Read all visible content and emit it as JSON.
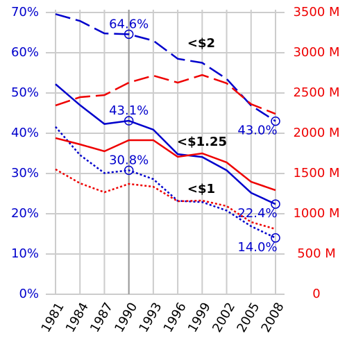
{
  "chart_data": {
    "type": "line",
    "x": [
      1981,
      1984,
      1987,
      1990,
      1993,
      1996,
      1999,
      2002,
      2005,
      2008
    ],
    "xlim": [
      1981,
      2008
    ],
    "xticks": [
      1981,
      1984,
      1987,
      1990,
      1993,
      1996,
      1999,
      2002,
      2005,
      2008
    ],
    "ylim": [
      0,
      70
    ],
    "yticks": [
      {
        "value": 0,
        "label": "0%"
      },
      {
        "value": 10,
        "label": "10%"
      },
      {
        "value": 20,
        "label": "20%"
      },
      {
        "value": 30,
        "label": "30%"
      },
      {
        "value": 40,
        "label": "40%"
      },
      {
        "value": 50,
        "label": "50%"
      },
      {
        "value": 60,
        "label": "60%"
      },
      {
        "value": 70,
        "label": "70%"
      }
    ],
    "y2lim": [
      0,
      3500
    ],
    "y2ticks": [
      0,
      {
        "value": 500,
        "label": "500 M"
      },
      {
        "value": 1000,
        "label": "1000 M"
      },
      {
        "value": 1500,
        "label": "1500 M"
      },
      {
        "value": 2000,
        "label": "2000 M"
      },
      {
        "value": 2500,
        "label": "2500 M"
      },
      {
        "value": 3000,
        "label": "3000 M"
      },
      {
        "value": 3500,
        "label": "3500 M"
      }
    ],
    "grid": true,
    "y_color": "#0000cc",
    "y2_color": "#ee0000",
    "series": [
      {
        "name": "<$2",
        "color": "#0000cc",
        "style": "dashed",
        "values": [
          69.6,
          67.9,
          64.8,
          64.6,
          63.0,
          58.5,
          57.5,
          53.5,
          46.9,
          43.0
        ],
        "value_labels": [
          null,
          null,
          null,
          "64.6%",
          null,
          null,
          null,
          null,
          null,
          "43.0%"
        ]
      },
      {
        "name": "<$1.25",
        "color": "#0000cc",
        "style": "solid",
        "values": [
          52.2,
          47.0,
          42.3,
          43.1,
          40.9,
          34.8,
          34.1,
          30.8,
          25.2,
          22.4
        ],
        "value_labels": [
          null,
          null,
          null,
          "43.1%",
          null,
          null,
          null,
          null,
          null,
          "22.4%"
        ]
      },
      {
        "name": "<$1",
        "color": "#0000cc",
        "style": "dotted",
        "values": [
          41.6,
          34.6,
          30.1,
          30.8,
          28.6,
          23.2,
          22.9,
          20.8,
          16.9,
          14.0
        ],
        "value_labels": [
          null,
          null,
          null,
          "30.8%",
          null,
          null,
          null,
          null,
          null,
          "14.0%"
        ]
      },
      {
        "color": "#ee0000",
        "style": "dashed",
        "axis": "y2",
        "values": [
          2345,
          2448,
          2474,
          2629,
          2716,
          2629,
          2724,
          2621,
          2362,
          2241
        ]
      },
      {
        "color": "#ee0000",
        "style": "solid",
        "axis": "y2",
        "values": [
          1940,
          1862,
          1776,
          1914,
          1914,
          1707,
          1750,
          1638,
          1397,
          1293
        ]
      },
      {
        "color": "#ee0000",
        "style": "dotted",
        "axis": "y2",
        "values": [
          1552,
          1379,
          1267,
          1371,
          1336,
          1155,
          1164,
          1095,
          897,
          810
        ]
      }
    ]
  }
}
